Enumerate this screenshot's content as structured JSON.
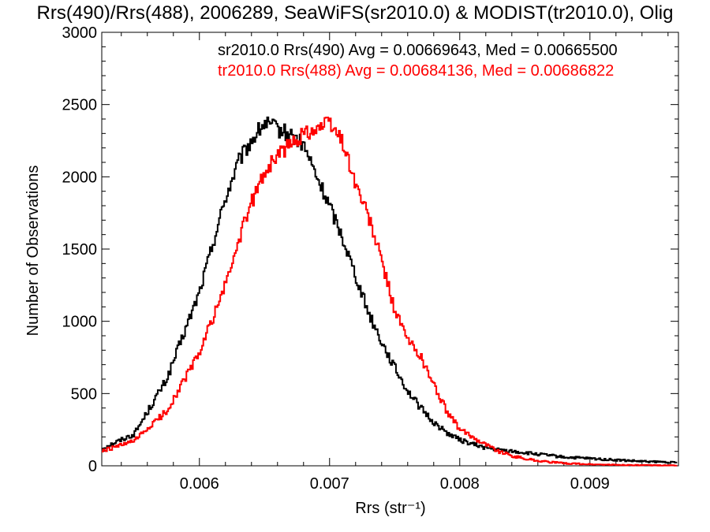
{
  "chart_data": {
    "type": "line",
    "title": "Rrs(490)/Rrs(488), 2006289, SeaWiFS(sr2010.0) & MODIST(tr2010.0), Olig",
    "xlabel": "Rrs (str⁻¹)",
    "ylabel": "Number of Observations",
    "xlim": [
      0.00525,
      0.00968
    ],
    "ylim": [
      0,
      3000
    ],
    "xticks": [
      0.006,
      0.007,
      0.008,
      0.009
    ],
    "xtick_labels": [
      "0.006",
      "0.007",
      "0.008",
      "0.009"
    ],
    "yticks": [
      0,
      500,
      1000,
      1500,
      2000,
      2500,
      3000
    ],
    "ytick_labels": [
      "0",
      "500",
      "1000",
      "1500",
      "2000",
      "2500",
      "3000"
    ],
    "legend_placement": "top-right",
    "series": [
      {
        "name": "sr2010.0 Rrs(490) Avg = 0.00669643, Med = 0.00665500",
        "color": "#000000",
        "x": [
          0.00525,
          0.0055,
          0.00575,
          0.006,
          0.0062,
          0.0063,
          0.0064,
          0.0065,
          0.0066,
          0.0067,
          0.0068,
          0.0069,
          0.007,
          0.0071,
          0.0072,
          0.0073,
          0.0074,
          0.0075,
          0.0076,
          0.0077,
          0.0078,
          0.0079,
          0.008,
          0.0081,
          0.0082,
          0.0083,
          0.0084,
          0.0085,
          0.0086,
          0.0087,
          0.0088,
          0.009,
          0.0092,
          0.0094,
          0.0096,
          0.00968
        ],
        "y": [
          120,
          220,
          600,
          1200,
          1850,
          2100,
          2250,
          2370,
          2330,
          2290,
          2220,
          2000,
          1800,
          1580,
          1320,
          1060,
          860,
          680,
          520,
          400,
          300,
          230,
          180,
          150,
          125,
          110,
          100,
          90,
          80,
          70,
          60,
          50,
          40,
          30,
          25,
          20
        ]
      },
      {
        "name": "tr2010.0 Rrs(488) Avg = 0.00684136, Med = 0.00686822",
        "color": "#ff0000",
        "x": [
          0.00525,
          0.0055,
          0.00575,
          0.006,
          0.0062,
          0.0063,
          0.0064,
          0.0065,
          0.0066,
          0.0067,
          0.0068,
          0.0069,
          0.007,
          0.0071,
          0.0072,
          0.0073,
          0.0074,
          0.0075,
          0.0076,
          0.0077,
          0.0078,
          0.0079,
          0.008,
          0.0081,
          0.0082,
          0.0083,
          0.0084,
          0.0085,
          0.0086,
          0.0087,
          0.0088,
          0.009,
          0.0092,
          0.0094,
          0.0096,
          0.00968
        ],
        "y": [
          100,
          170,
          380,
          780,
          1250,
          1550,
          1820,
          2030,
          2150,
          2220,
          2300,
          2340,
          2370,
          2250,
          1950,
          1720,
          1420,
          1080,
          870,
          760,
          560,
          380,
          250,
          200,
          150,
          100,
          70,
          50,
          35,
          25,
          18,
          10,
          6,
          4,
          3,
          2
        ]
      }
    ]
  }
}
